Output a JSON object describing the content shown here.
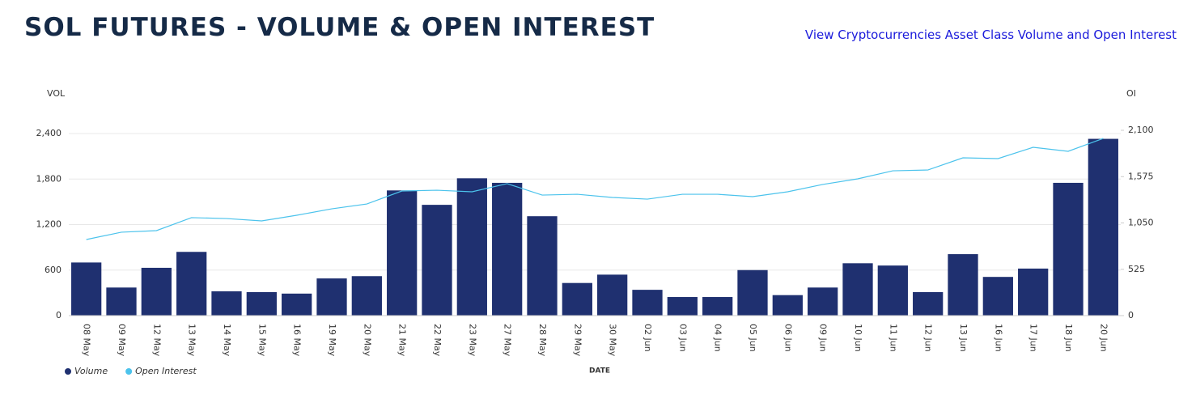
{
  "chart_data": {
    "type": "bar-line",
    "title": "SOL FUTURES - VOLUME & OPEN INTEREST",
    "link": "View Cryptocurrencies Asset Class Volume and Open Interest",
    "y_label": "VOL",
    "y2_label": "OI",
    "x_label": "DATE",
    "categories": [
      "08 May",
      "09 May",
      "12 May",
      "13 May",
      "14 May",
      "15 May",
      "16 May",
      "19 May",
      "20 May",
      "21 May",
      "22 May",
      "23 May",
      "27 May",
      "28 May",
      "29 May",
      "30 May",
      "02 Jun",
      "03 Jun",
      "04 Jun",
      "05 Jun",
      "06 Jun",
      "09 Jun",
      "10 Jun",
      "11 Jun",
      "12 Jun",
      "13 Jun",
      "16 Jun",
      "17 Jun",
      "18 Jun",
      "20 Jun"
    ],
    "series": [
      {
        "name": "Volume",
        "color": "#1f3070",
        "kind": "bar",
        "values": [
          700,
          370,
          630,
          840,
          320,
          310,
          290,
          490,
          520,
          1650,
          1460,
          1810,
          1750,
          1310,
          430,
          540,
          340,
          245,
          245,
          600,
          270,
          370,
          690,
          660,
          310,
          810,
          510,
          620,
          1750,
          2330
        ]
      },
      {
        "name": "Open Interest",
        "color": "#4cc3ec",
        "kind": "line",
        "axis": "y2",
        "values": [
          862,
          945,
          963,
          1110,
          1100,
          1073,
          1137,
          1210,
          1265,
          1412,
          1421,
          1403,
          1495,
          1366,
          1375,
          1339,
          1320,
          1375,
          1375,
          1348,
          1403,
          1486,
          1550,
          1641,
          1650,
          1788,
          1779,
          1907,
          1862,
          2008
        ]
      }
    ],
    "ylim": [
      0,
      2400
    ],
    "yticks": [
      0,
      600,
      {
        "value": 1200,
        "label": "1,200"
      },
      {
        "value": 1800,
        "label": "1,800"
      },
      {
        "value": 2400,
        "label": "2,400"
      }
    ],
    "y2lim": [
      0,
      2100
    ],
    "y2ticks": [
      0,
      525,
      {
        "value": 1050,
        "label": "1,050"
      },
      {
        "value": 1575,
        "label": "1,575"
      },
      {
        "value": 2100,
        "label": "2,100"
      }
    ],
    "grid": true
  }
}
